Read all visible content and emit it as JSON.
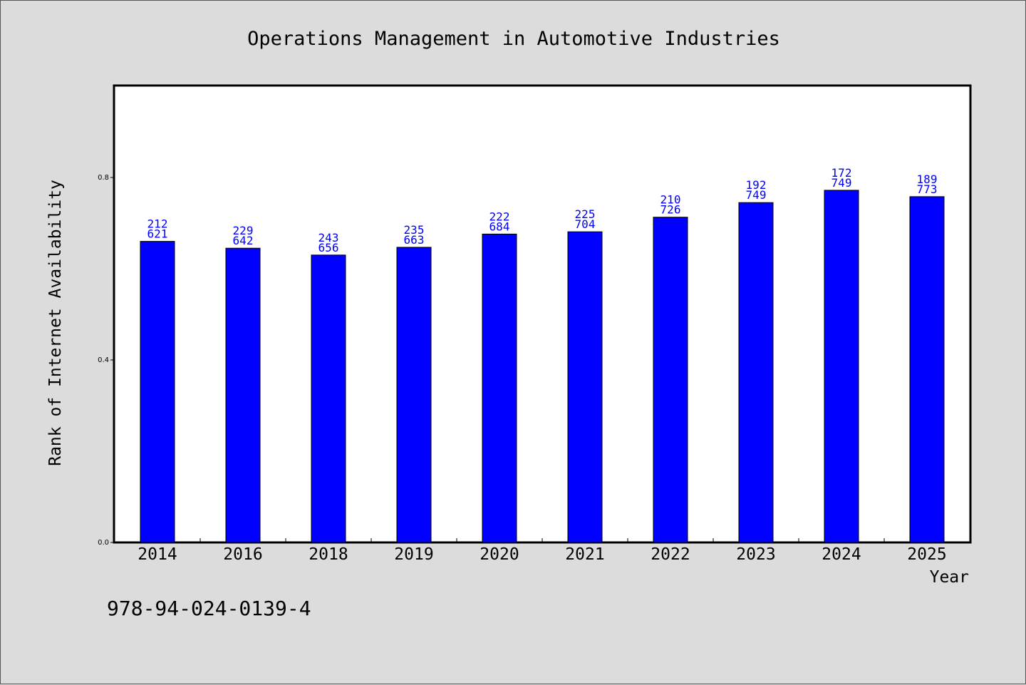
{
  "chart_data": {
    "type": "bar",
    "title": "Operations Management in Automotive Industries",
    "xlabel": "Year",
    "ylabel": "Rank of Internet Availability",
    "categories": [
      "2014",
      "2016",
      "2018",
      "2019",
      "2020",
      "2021",
      "2022",
      "2023",
      "2024",
      "2025"
    ],
    "values": [
      0.66,
      0.645,
      0.63,
      0.647,
      0.676,
      0.681,
      0.713,
      0.745,
      0.772,
      0.758
    ],
    "data_labels_top": [
      "212",
      "229",
      "243",
      "235",
      "222",
      "225",
      "210",
      "192",
      "172",
      "189"
    ],
    "data_labels_bottom": [
      "621",
      "642",
      "656",
      "663",
      "684",
      "704",
      "726",
      "749",
      "749",
      "773"
    ],
    "ylim": [
      0.0,
      1.0
    ],
    "yticks": [
      0.0,
      0.4,
      0.8
    ],
    "ytick_labels": [
      "0.0",
      "0.4",
      "0.8"
    ],
    "bar_color": "#0000ff",
    "label_color": "#0000ff",
    "grid": false,
    "legend": "none"
  },
  "footer": {
    "isbn": "978-94-024-0139-4"
  }
}
